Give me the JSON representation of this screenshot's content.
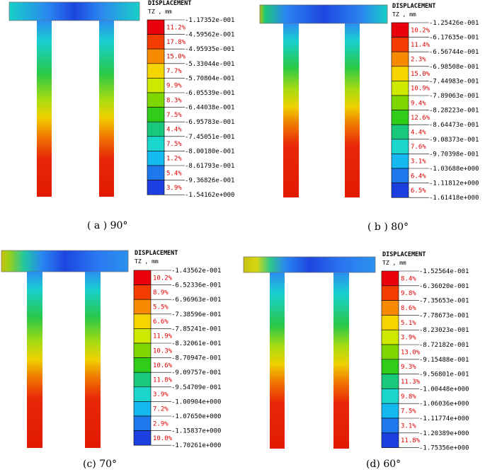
{
  "panels": [
    {
      "caption": "( a ) 90°",
      "legend_title": "DISPLACEMENT",
      "legend_unit": "TZ , mm",
      "values": [
        "-1.17352e-001",
        "-4.59562e-001",
        "-4.95935e-001",
        "-5.33044e-001",
        "-5.70804e-001",
        "-6.05539e-001",
        "-6.44038e-001",
        "-6.95783e-001",
        "-7.45051e-001",
        "-8.00180e-001",
        "-8.61793e-001",
        "-9.36826e-001",
        "-1.54162e+000"
      ],
      "percents": [
        "11.2%",
        "17.8%",
        "15.0%",
        "7.7%",
        "9.9%",
        "8.3%",
        "7.5%",
        "4.4%",
        "7.5%",
        "1.2%",
        "5.4%",
        "3.9%"
      ],
      "colors": [
        "#e8000b",
        "#f23c00",
        "#f78a00",
        "#f5d400",
        "#cfe800",
        "#7ed600",
        "#2fcc18",
        "#19c87a",
        "#1ad6cc",
        "#16b8f0",
        "#1e78ec",
        "#1c3fe0"
      ]
    },
    {
      "caption": "( b ) 80°",
      "legend_title": "DISPLACEMENT",
      "legend_unit": "TZ , mm",
      "values": [
        "-1.25426e-001",
        "-6.17635e-001",
        "-6.56744e-001",
        "-6.98508e-001",
        "-7.44983e-001",
        "-7.89063e-001",
        "-8.28223e-001",
        "-8.64473e-001",
        "-9.08373e-001",
        "-9.70398e-001",
        "-1.03688e+000",
        "-1.11812e+000",
        "-1.61418e+000"
      ],
      "percents": [
        "10.2%",
        "11.4%",
        "2.3%",
        "15.0%",
        "10.9%",
        "9.4%",
        "12.6%",
        "4.4%",
        "7.6%",
        "3.1%",
        "6.4%",
        "6.5%"
      ],
      "colors": [
        "#e8000b",
        "#f23c00",
        "#f78a00",
        "#f5d400",
        "#cfe800",
        "#7ed600",
        "#2fcc18",
        "#19c87a",
        "#1ad6cc",
        "#16b8f0",
        "#1e78ec",
        "#1c3fe0"
      ]
    },
    {
      "caption": "(c) 70°",
      "legend_title": "DISPLACEMENT",
      "legend_unit": "TZ , mm",
      "values": [
        "-1.43562e-001",
        "-6.52336e-001",
        "-6.96963e-001",
        "-7.38596e-001",
        "-7.85241e-001",
        "-8.32061e-001",
        "-8.70947e-001",
        "-9.09757e-001",
        "-9.54709e-001",
        "-1.00904e+000",
        "-1.07650e+000",
        "-1.15837e+000",
        "-1.70261e+000"
      ],
      "percents": [
        "10.2%",
        "8.9%",
        "5.5%",
        "6.6%",
        "11.9%",
        "10.3%",
        "10.6%",
        "11.8%",
        "3.9%",
        "7.2%",
        "2.9%",
        "10.0%"
      ],
      "colors": [
        "#e8000b",
        "#f23c00",
        "#f78a00",
        "#f5d400",
        "#cfe800",
        "#7ed600",
        "#2fcc18",
        "#19c87a",
        "#1ad6cc",
        "#16b8f0",
        "#1e78ec",
        "#1c3fe0"
      ]
    },
    {
      "caption": "(d) 60°",
      "legend_title": "DISPLACEMENT",
      "legend_unit": "TZ , mm",
      "values": [
        "-1.52564e-001",
        "-6.36020e-001",
        "-7.35653e-001",
        "-7.78673e-001",
        "-8.23023e-001",
        "-8.72182e-001",
        "-9.15488e-001",
        "-9.56801e-001",
        "-1.00448e+000",
        "-1.06036e+000",
        "-1.11774e+000",
        "-1.20389e+000",
        "-1.75356e+000"
      ],
      "percents": [
        "8.4%",
        "9.8%",
        "8.6%",
        "5.1%",
        "3.9%",
        "13.0%",
        "9.3%",
        "11.3%",
        "9.8%",
        "7.5%",
        "3.1%",
        "11.8%"
      ],
      "colors": [
        "#e8000b",
        "#f23c00",
        "#f78a00",
        "#f5d400",
        "#cfe800",
        "#7ed600",
        "#2fcc18",
        "#19c87a",
        "#1ad6cc",
        "#16b8f0",
        "#1e78ec",
        "#1c3fe0"
      ]
    }
  ]
}
